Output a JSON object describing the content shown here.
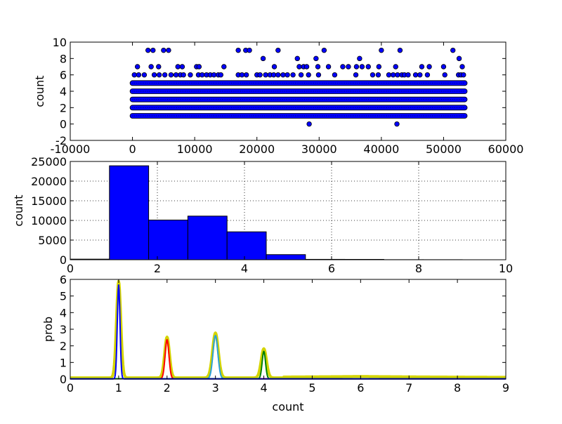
{
  "chart_data": [
    {
      "type": "scatter",
      "ylabel": "count",
      "xlim": [
        -10000,
        60000
      ],
      "ylim": [
        -2,
        10
      ],
      "x_ticks": [
        -10000,
        0,
        10000,
        20000,
        30000,
        40000,
        50000,
        60000
      ],
      "y_ticks": [
        -2,
        0,
        2,
        4,
        6,
        8,
        10
      ],
      "grid": false,
      "marker_color": "#0000ff",
      "index_range": [
        0,
        53400
      ],
      "band_values": [
        1,
        2,
        3,
        4,
        5
      ],
      "points": [
        [
          28400,
          0
        ],
        [
          42500,
          0
        ],
        [
          2500,
          9
        ],
        [
          3300,
          9
        ],
        [
          5000,
          9
        ],
        [
          5800,
          9
        ],
        [
          17000,
          9
        ],
        [
          18200,
          9
        ],
        [
          18800,
          9
        ],
        [
          23400,
          9
        ],
        [
          30800,
          9
        ],
        [
          40000,
          9
        ],
        [
          43000,
          9
        ],
        [
          51500,
          9
        ],
        [
          21000,
          8
        ],
        [
          26500,
          8
        ],
        [
          29500,
          8
        ],
        [
          36500,
          8
        ],
        [
          52500,
          8
        ],
        [
          800,
          7
        ],
        [
          3000,
          7
        ],
        [
          4200,
          7
        ],
        [
          7300,
          7
        ],
        [
          8000,
          7
        ],
        [
          10300,
          7
        ],
        [
          10700,
          7
        ],
        [
          14700,
          7
        ],
        [
          22800,
          7
        ],
        [
          26800,
          7
        ],
        [
          27500,
          7
        ],
        [
          28000,
          7
        ],
        [
          29800,
          7
        ],
        [
          31500,
          7
        ],
        [
          33800,
          7
        ],
        [
          34700,
          7
        ],
        [
          36000,
          7
        ],
        [
          36900,
          7
        ],
        [
          37900,
          7
        ],
        [
          39600,
          7
        ],
        [
          42300,
          7
        ],
        [
          46500,
          7
        ],
        [
          47700,
          7
        ],
        [
          50000,
          7
        ],
        [
          53000,
          7
        ],
        [
          300,
          6
        ],
        [
          1000,
          6
        ],
        [
          1900,
          6
        ],
        [
          3500,
          6
        ],
        [
          4300,
          6
        ],
        [
          5200,
          6
        ],
        [
          6200,
          6
        ],
        [
          7000,
          6
        ],
        [
          7700,
          6
        ],
        [
          8200,
          6
        ],
        [
          9300,
          6
        ],
        [
          10600,
          6
        ],
        [
          11200,
          6
        ],
        [
          11900,
          6
        ],
        [
          12500,
          6
        ],
        [
          13100,
          6
        ],
        [
          13800,
          6
        ],
        [
          14200,
          6
        ],
        [
          17000,
          6
        ],
        [
          17600,
          6
        ],
        [
          18300,
          6
        ],
        [
          20000,
          6
        ],
        [
          20500,
          6
        ],
        [
          21400,
          6
        ],
        [
          22100,
          6
        ],
        [
          22700,
          6
        ],
        [
          23400,
          6
        ],
        [
          24200,
          6
        ],
        [
          24900,
          6
        ],
        [
          25800,
          6
        ],
        [
          27100,
          6
        ],
        [
          28300,
          6
        ],
        [
          29900,
          6
        ],
        [
          32500,
          6
        ],
        [
          35900,
          6
        ],
        [
          38600,
          6
        ],
        [
          39500,
          6
        ],
        [
          41200,
          6
        ],
        [
          41900,
          6
        ],
        [
          42600,
          6
        ],
        [
          43300,
          6
        ],
        [
          43700,
          6
        ],
        [
          44300,
          6
        ],
        [
          45500,
          6
        ],
        [
          46200,
          6
        ],
        [
          47400,
          6
        ],
        [
          50200,
          6
        ],
        [
          52400,
          6
        ],
        [
          52800,
          6
        ],
        [
          53200,
          6
        ]
      ]
    },
    {
      "type": "bar",
      "ylabel": "count",
      "xlim": [
        0,
        10
      ],
      "ylim": [
        0,
        25000
      ],
      "x_ticks": [
        0,
        2,
        4,
        6,
        8,
        10
      ],
      "y_ticks": [
        0,
        5000,
        10000,
        15000,
        20000,
        25000
      ],
      "grid": true,
      "bar_color": "#0000ff",
      "bins": [
        [
          0,
          0.9,
          150
        ],
        [
          0.9,
          1.8,
          23900
        ],
        [
          1.8,
          2.7,
          10100
        ],
        [
          2.7,
          3.6,
          11100
        ],
        [
          3.6,
          4.5,
          7100
        ],
        [
          4.5,
          5.4,
          1300
        ],
        [
          5.4,
          6.3,
          100
        ],
        [
          6.3,
          7.2,
          90
        ],
        [
          7.2,
          8.1,
          20
        ],
        [
          8.1,
          9.0,
          15
        ]
      ]
    },
    {
      "type": "line",
      "xlabel": "count",
      "ylabel": "prob",
      "xlim": [
        0,
        9
      ],
      "ylim": [
        0,
        6
      ],
      "x_ticks": [
        0,
        1,
        2,
        3,
        4,
        5,
        6,
        7,
        8,
        9
      ],
      "y_ticks": [
        0,
        1,
        2,
        3,
        4,
        5,
        6
      ],
      "grid": false,
      "series": [
        {
          "color": "#d4d400",
          "baseline": 0.08,
          "peaks": [
            [
              1,
              5.8,
              0.045
            ],
            [
              2,
              2.45,
              0.05
            ],
            [
              3,
              2.7,
              0.06
            ],
            [
              4,
              1.75,
              0.055
            ]
          ],
          "tail": 0.08,
          "stroke": 4
        },
        {
          "color": "#2aa0d8",
          "baseline": 0.02,
          "peaks": [
            [
              3,
              2.6,
              0.05
            ]
          ],
          "tail": 0,
          "stroke": 2
        },
        {
          "color": "#ff0000",
          "baseline": 0.02,
          "peaks": [
            [
              2,
              2.35,
              0.04
            ]
          ],
          "tail": 0,
          "stroke": 2
        },
        {
          "color": "#008000",
          "baseline": 0.02,
          "peaks": [
            [
              4,
              1.65,
              0.035
            ]
          ],
          "tail": 0,
          "stroke": 2
        },
        {
          "color": "#0000ff",
          "baseline": 0.01,
          "peaks": [
            [
              1,
              5.65,
              0.028
            ]
          ],
          "tail": 0,
          "stroke": 2
        }
      ]
    }
  ]
}
